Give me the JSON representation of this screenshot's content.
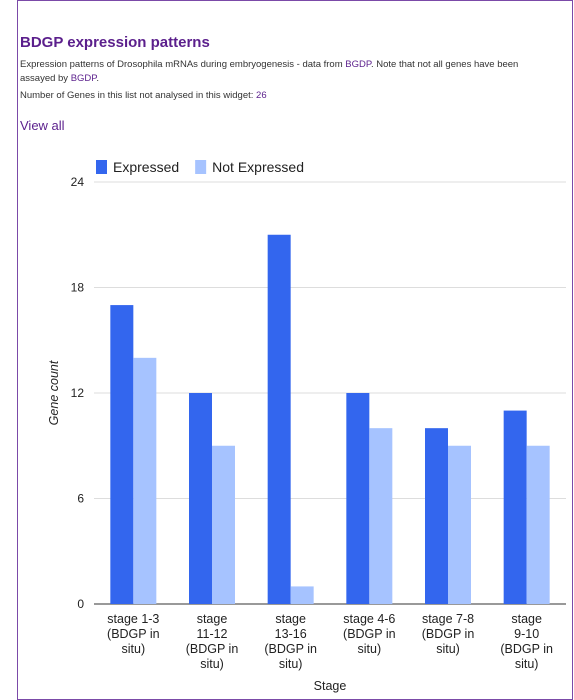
{
  "widget": {
    "title": "BDGP expression patterns",
    "desc_prefix": "Expression patterns of Drosophila mRNAs during embryogenesis - data from ",
    "desc_link1": "BGDP",
    "desc_middle": ". Note that not all genes have been assayed by ",
    "desc_link2": "BGDP",
    "desc_suffix": ".",
    "count_label": "Number of Genes in this list not analysed in this widget: ",
    "count_value": "26",
    "view_all": "View all"
  },
  "colors": {
    "expressed": "#3366ee",
    "not_expressed": "#a6c3ff",
    "accent": "#5b1f8c"
  },
  "chart_data": {
    "type": "bar",
    "categories": [
      "stage 1-3 (BDGP in situ)",
      "stage 11-12 (BDGP in situ)",
      "stage 13-16 (BDGP in situ)",
      "stage 4-6 (BDGP in situ)",
      "stage 7-8 (BDGP in situ)",
      "stage 9-10 (BDGP in situ)"
    ],
    "category_lines": [
      [
        "stage 1-3",
        "(BDGP in",
        "situ)"
      ],
      [
        "stage",
        "11-12",
        "(BDGP in",
        "situ)"
      ],
      [
        "stage",
        "13-16",
        "(BDGP in",
        "situ)"
      ],
      [
        "stage 4-6",
        "(BDGP in",
        "situ)"
      ],
      [
        "stage 7-8",
        "(BDGP in",
        "situ)"
      ],
      [
        "stage",
        "9-10",
        "(BDGP in",
        "situ)"
      ]
    ],
    "series": [
      {
        "name": "Expressed",
        "values": [
          17,
          12,
          21,
          12,
          10,
          11
        ]
      },
      {
        "name": "Not Expressed",
        "values": [
          14,
          9,
          1,
          10,
          9,
          9
        ]
      }
    ],
    "ylabel": "Gene count",
    "xlabel": "Stage",
    "ylim": [
      0,
      24
    ],
    "yticks": [
      "0",
      "6",
      "12",
      "18",
      "24"
    ],
    "grid": true,
    "legend_position": "top-left"
  }
}
